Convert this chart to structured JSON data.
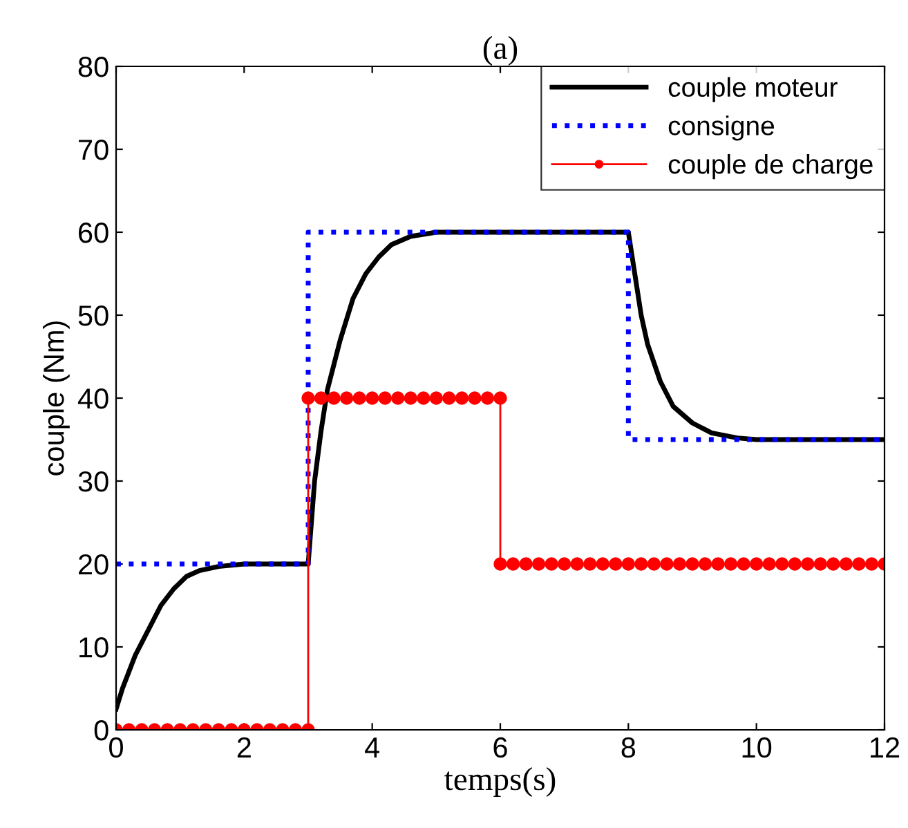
{
  "chart_data": {
    "type": "line",
    "title": "(a)",
    "xlabel": "temps(s)",
    "ylabel": "couple (Nm)",
    "xlim": [
      0,
      12
    ],
    "xticks": [
      0,
      2,
      4,
      6,
      8,
      10,
      12
    ],
    "ylim": [
      0,
      80
    ],
    "yticks": [
      0,
      10,
      20,
      30,
      40,
      50,
      60,
      70,
      80
    ],
    "grid": false,
    "legend": "top right",
    "series": [
      {
        "name": "couple moteur",
        "color": "#000000",
        "line_style": "solid",
        "marker": "none",
        "x": [
          0,
          0.1,
          0.2,
          0.3,
          0.5,
          0.7,
          0.9,
          1.1,
          1.3,
          1.6,
          2,
          3,
          3.05,
          3.1,
          3.2,
          3.3,
          3.5,
          3.7,
          3.9,
          4.1,
          4.3,
          4.6,
          5,
          8,
          8.1,
          8.2,
          8.3,
          8.5,
          8.7,
          9,
          9.3,
          9.7,
          10,
          12
        ],
        "values": [
          2.5,
          5,
          7,
          9,
          12,
          15,
          17,
          18.5,
          19.2,
          19.7,
          20,
          20,
          25,
          30,
          36,
          41,
          47,
          52,
          55,
          57,
          58.5,
          59.5,
          60,
          60,
          55,
          50,
          46.5,
          42,
          39,
          37,
          35.8,
          35.2,
          35,
          35
        ]
      },
      {
        "name": "consigne",
        "color": "#0000ff",
        "type": "step",
        "line_style": "dotted",
        "marker": "none",
        "x": [
          0,
          3,
          8,
          12
        ],
        "values": [
          20,
          60,
          35,
          35
        ]
      },
      {
        "name": "couple de charge",
        "color": "#ff0000",
        "type": "step",
        "line_style": "solid",
        "marker": "circle",
        "x": [
          0,
          0.2,
          0.4,
          0.6,
          0.8,
          1,
          1.2,
          1.4,
          1.6,
          1.8,
          2,
          2.2,
          2.4,
          2.6,
          2.8,
          3,
          3,
          3.2,
          3.4,
          3.6,
          3.8,
          4,
          4.2,
          4.4,
          4.6,
          4.8,
          5,
          5.2,
          5.4,
          5.6,
          5.8,
          6,
          6,
          6.2,
          6.4,
          6.6,
          6.8,
          7,
          7.2,
          7.4,
          7.6,
          7.8,
          8,
          8.2,
          8.4,
          8.6,
          8.8,
          9,
          9.2,
          9.4,
          9.6,
          9.8,
          10,
          10.2,
          10.4,
          10.6,
          10.8,
          11,
          11.2,
          11.4,
          11.6,
          11.8,
          12
        ],
        "values": [
          0,
          0,
          0,
          0,
          0,
          0,
          0,
          0,
          0,
          0,
          0,
          0,
          0,
          0,
          0,
          0,
          40,
          40,
          40,
          40,
          40,
          40,
          40,
          40,
          40,
          40,
          40,
          40,
          40,
          40,
          40,
          40,
          20,
          20,
          20,
          20,
          20,
          20,
          20,
          20,
          20,
          20,
          20,
          20,
          20,
          20,
          20,
          20,
          20,
          20,
          20,
          20,
          20,
          20,
          20,
          20,
          20,
          20,
          20,
          20,
          20,
          20,
          20
        ]
      }
    ]
  }
}
